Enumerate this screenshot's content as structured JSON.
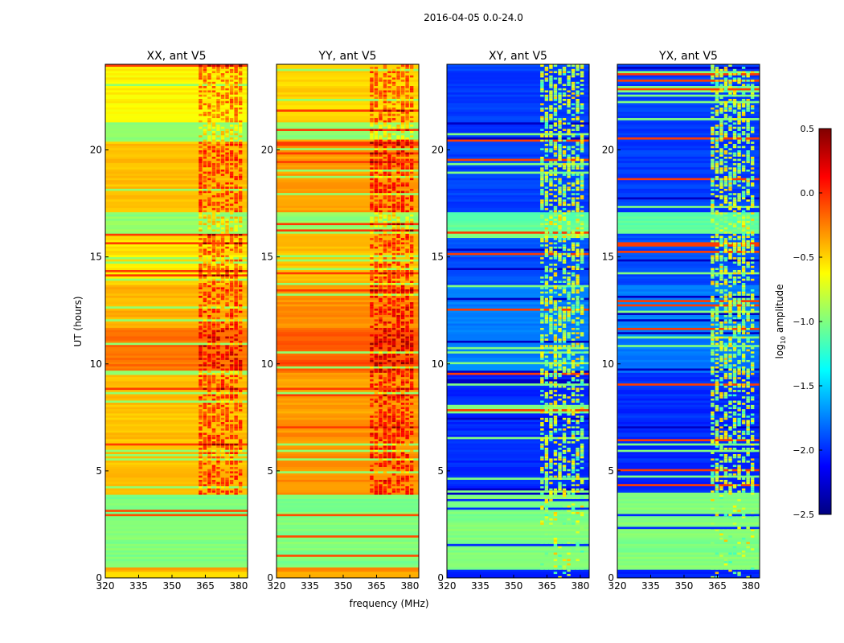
{
  "chart_data": {
    "type": "heatmap",
    "title": "2016-04-05 0.0-24.0",
    "xlabel": "frequency (MHz)",
    "ylabel": "UT (hours)",
    "xlim": [
      320,
      384
    ],
    "ylim": [
      0,
      24
    ],
    "xticks": [
      "320",
      "335",
      "350",
      "365",
      "380"
    ],
    "yticks": [
      "0",
      "5",
      "10",
      "15",
      "20"
    ],
    "colorbar": {
      "label_prefix": "log",
      "label_sub": "10",
      "label_suffix": " amplitude",
      "range": [
        -2.5,
        0.5
      ],
      "ticks": [
        "0.5",
        "0.0",
        "−0.5",
        "−1.0",
        "−1.5",
        "−2.0",
        "−2.5"
      ],
      "colormap": "jet"
    },
    "rfi_band_mhz": [
      362,
      381
    ],
    "panels": [
      {
        "title": "XX, ant V5",
        "kind": "auto",
        "bands": [
          [
            0,
            0.3,
            -0.55
          ],
          [
            0.3,
            0.45,
            -0.35
          ],
          [
            0.45,
            3.9,
            -1.0
          ],
          [
            3.9,
            9.5,
            -0.45
          ],
          [
            9.5,
            11.6,
            -0.2
          ],
          [
            11.6,
            13.6,
            -0.4
          ],
          [
            13.6,
            16,
            -0.55
          ],
          [
            16,
            17,
            -0.95
          ],
          [
            17,
            20.5,
            -0.45
          ],
          [
            20.5,
            21.3,
            -0.95
          ],
          [
            21.3,
            24,
            -0.6
          ]
        ]
      },
      {
        "title": "YY, ant V5",
        "kind": "auto",
        "bands": [
          [
            0,
            0.3,
            -0.35
          ],
          [
            0.3,
            0.45,
            -0.25
          ],
          [
            0.45,
            3.9,
            -1.0
          ],
          [
            3.9,
            7.4,
            -0.3
          ],
          [
            7.4,
            9.5,
            -0.35
          ],
          [
            9.5,
            11.6,
            -0.15
          ],
          [
            11.6,
            13.6,
            -0.3
          ],
          [
            13.6,
            16,
            -0.45
          ],
          [
            16,
            17,
            -0.95
          ],
          [
            17,
            20.5,
            -0.35
          ],
          [
            20.5,
            21.3,
            -0.95
          ],
          [
            21.3,
            24,
            -0.5
          ]
        ]
      },
      {
        "title": "XY, ant V5",
        "kind": "cross",
        "bands": [
          [
            0,
            0.4,
            -2.0
          ],
          [
            0.4,
            3.9,
            -1.0
          ],
          [
            3.9,
            9.5,
            -2.0
          ],
          [
            9.5,
            13.6,
            -1.75
          ],
          [
            13.6,
            16,
            -1.9
          ],
          [
            16,
            17,
            -1.1
          ],
          [
            17,
            24,
            -1.95
          ]
        ]
      },
      {
        "title": "YX, ant V5",
        "kind": "cross",
        "bands": [
          [
            0,
            0.4,
            -2.0
          ],
          [
            0.4,
            3.9,
            -1.0
          ],
          [
            3.9,
            9.5,
            -2.0
          ],
          [
            9.5,
            13.6,
            -1.75
          ],
          [
            13.6,
            16,
            -1.9
          ],
          [
            16,
            17,
            -1.1
          ],
          [
            17,
            24,
            -1.95
          ]
        ]
      }
    ]
  }
}
